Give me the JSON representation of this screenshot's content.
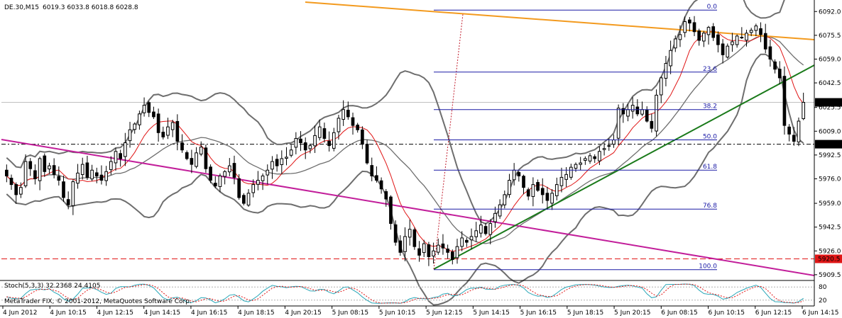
{
  "header": {
    "symbol": "DE.30,M15",
    "ohlc": "6019.3 6033.8 6018.8 6028.8"
  },
  "stoch_label": "Stoch(5,3,3) 32.2368 24.4105",
  "copyright": "MetaTrader FIX, © 2001-2012, MetaQuotes Software Corp.",
  "price_labels": [
    {
      "value": 6092.0,
      "text": "6092.0"
    },
    {
      "value": 6075.5,
      "text": "6075.5"
    },
    {
      "value": 6059.0,
      "text": "6059.0"
    },
    {
      "value": 6042.5,
      "text": "6042.5"
    },
    {
      "value": 6025.5,
      "text": "6025.5"
    },
    {
      "value": 6009.0,
      "text": "6009.0"
    },
    {
      "value": 5992.5,
      "text": "5992.5"
    },
    {
      "value": 5976.0,
      "text": "5976.0"
    },
    {
      "value": 5959.0,
      "text": "5959.0"
    },
    {
      "value": 5942.5,
      "text": "5942.5"
    },
    {
      "value": 5926.0,
      "text": "5926.0"
    },
    {
      "value": 5909.5,
      "text": "5909.5"
    }
  ],
  "current_price_tag": "6028.8",
  "level_6000_tag": "6000.0",
  "level_5920_tag": "5920.5",
  "stoch_axis": [
    "80",
    "20"
  ],
  "time_labels": [
    "4 Jun 2012",
    "4 Jun 10:15",
    "4 Jun 12:15",
    "4 Jun 14:15",
    "4 Jun 16:15",
    "4 Jun 18:15",
    "4 Jun 20:15",
    "5 Jun 08:15",
    "5 Jun 10:15",
    "5 Jun 12:15",
    "5 Jun 14:15",
    "5 Jun 16:15",
    "5 Jun 18:15",
    "5 Jun 20:15",
    "6 Jun 08:15",
    "6 Jun 10:15",
    "6 Jun 12:15",
    "6 Jun 14:15"
  ],
  "fib_levels": [
    {
      "label": "0.0",
      "price": 6093.0
    },
    {
      "label": "23.6",
      "price": 6050.0
    },
    {
      "label": "38.2",
      "price": 6024.0
    },
    {
      "label": "50.0",
      "price": 6003.0
    },
    {
      "label": "61.8",
      "price": 5982.0
    },
    {
      "label": "76.8",
      "price": 5955.0
    },
    {
      "label": "100.0",
      "price": 5913.0
    }
  ],
  "colors": {
    "orange_trend": "#f39a1e",
    "magenta_trend": "#c21e9a",
    "green_trend": "#1a7a1a",
    "bands": "#6e6e6e",
    "ma": "#e01616",
    "fib": "#1a1aa6",
    "stoch_main": "#2aa7b8",
    "stoch_signal": "#e01616"
  },
  "chart_data": {
    "type": "candlestick",
    "ylim": [
      5906,
      6099
    ],
    "closes": [
      5978,
      5972,
      5965,
      5970,
      5988,
      5983,
      5976,
      5990,
      5981,
      5985,
      5979,
      5975,
      5963,
      5958,
      5974,
      5980,
      5986,
      5977,
      5982,
      5978,
      5975,
      5981,
      5988,
      5995,
      5990,
      6001,
      6010,
      6014,
      6021,
      6027,
      6022,
      6019,
      6008,
      6005,
      6012,
      6015,
      6002,
      5996,
      5990,
      5986,
      5994,
      5998,
      5983,
      5975,
      5971,
      5978,
      5981,
      5985,
      5977,
      5963,
      5959,
      5966,
      5972,
      5975,
      5978,
      5982,
      5988,
      5985,
      5990,
      5991,
      5996,
      6004,
      6001,
      5996,
      5999,
      6006,
      6012,
      6004,
      5999,
      6008,
      6018,
      6024,
      6019,
      6013,
      6010,
      6000,
      5987,
      5978,
      5975,
      5969,
      5962,
      5945,
      5932,
      5925,
      5936,
      5941,
      5929,
      5923,
      5931,
      5922,
      5926,
      5930,
      5928,
      5925,
      5920,
      5929,
      5935,
      5932,
      5936,
      5940,
      5944,
      5938,
      5945,
      5952,
      5958,
      5965,
      5975,
      5982,
      5978,
      5970,
      5964,
      5972,
      5968,
      5965,
      5961,
      5966,
      5972,
      5977,
      5979,
      5984,
      5986,
      5987,
      5990,
      5992,
      5990,
      5995,
      5997,
      5999,
      6003,
      6025,
      6021,
      6024,
      6027,
      6021,
      6024,
      6016,
      6011,
      6034,
      6046,
      6056,
      6065,
      6073,
      6076,
      6085,
      6084,
      6078,
      6072,
      6077,
      6081,
      6074,
      6069,
      6062,
      6068,
      6071,
      6075,
      6074,
      6077,
      6079,
      6082,
      6076,
      6066,
      6059,
      6052,
      6046,
      6013,
      6007,
      6002,
      6016,
      6029
    ]
  }
}
